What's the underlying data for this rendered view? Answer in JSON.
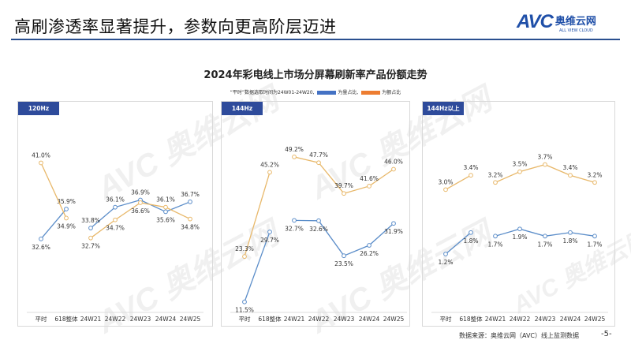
{
  "header": {
    "title": "高刷渗透率显著提升，参数向更高阶层迈进",
    "logo": {
      "mark": "AVC",
      "cn": "奥维云网",
      "en": "ALL VIEW CLOUD"
    }
  },
  "watermark": "AVC 奥维云网",
  "footer": {
    "source": "数据来源：奥维云网（AVC）线上监测数据",
    "page": "-5-"
  },
  "colors": {
    "volume": "#5b8dc9",
    "value": "#e8b86a",
    "tag": "#2e4b9b",
    "legend_blue": "#4472c4",
    "legend_orange": "#ed7d31"
  },
  "chart_data": {
    "type": "line",
    "title": "2024年彩电线上市场分屏幕刷新率产品份额走势",
    "legend": {
      "note": "“平时”数据选取时间为24W01-24W20,",
      "volume_label": "为量占比,",
      "value_label": "为额占比",
      "placement": "top"
    },
    "categories": [
      "平时",
      "618整体",
      "24W21",
      "24W22",
      "24W23",
      "24W24",
      "24W25"
    ],
    "panels": [
      {
        "label": "120Hz",
        "ylim": [
          25,
          42
        ],
        "series": [
          {
            "key": "volume",
            "values": [
              32.6,
              35.9,
              33.8,
              36.1,
              36.9,
              35.6,
              36.7
            ],
            "labels": [
              "32.6%",
              "35.9%",
              "33.8%",
              "36.1%",
              "36.9%",
              "35.6%",
              "36.7%"
            ]
          },
          {
            "key": "value",
            "values": [
              41.0,
              34.9,
              32.7,
              34.7,
              36.6,
              36.1,
              34.8
            ],
            "labels": [
              "41.0%",
              "34.9%",
              "32.7%",
              "34.7%",
              "36.6%",
              "36.1%",
              "34.8%"
            ]
          }
        ]
      },
      {
        "label": "144Hz",
        "ylim": [
          10,
          50
        ],
        "series": [
          {
            "key": "volume",
            "values": [
              11.5,
              29.7,
              32.7,
              32.6,
              23.5,
              26.2,
              31.9
            ],
            "labels": [
              "11.5%",
              "29.7%",
              "32.7%",
              "32.6%",
              "23.5%",
              "26.2%",
              "31.9%"
            ]
          },
          {
            "key": "value",
            "values": [
              23.3,
              45.2,
              49.2,
              47.7,
              39.7,
              41.6,
              46.0
            ],
            "labels": [
              "23.3%",
              "45.2%",
              "49.2%",
              "47.7%",
              "39.7%",
              "41.6%",
              "46.0%"
            ]
          }
        ]
      },
      {
        "label": "144Hz以上",
        "ylim": [
          -0.3,
          4.0
        ],
        "series": [
          {
            "key": "volume",
            "values": [
              1.2,
              1.8,
              1.7,
              1.9,
              1.7,
              1.8,
              1.7
            ],
            "labels": [
              "1.2%",
              "1.8%",
              "1.7%",
              "1.9%",
              "1.7%",
              "1.8%",
              "1.7%"
            ]
          },
          {
            "key": "value",
            "values": [
              3.0,
              3.4,
              3.2,
              3.5,
              3.7,
              3.4,
              3.2
            ],
            "labels": [
              "3.0%",
              "3.4%",
              "3.2%",
              "3.5%",
              "3.7%",
              "3.4%",
              "3.2%"
            ]
          }
        ]
      }
    ]
  }
}
